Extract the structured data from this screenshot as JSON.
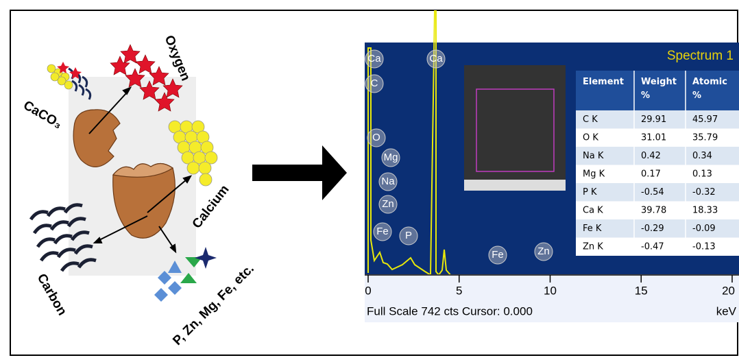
{
  "labels": {
    "oxygen": "Oxygen",
    "caco3": "CaCO₃",
    "calcium": "Calcium",
    "carbon": "Carbon",
    "others": "P, Zn, Mg, Fe, etc."
  },
  "spectrum": {
    "title": "Spectrum 1",
    "peak_labels": [
      "Ca",
      "C",
      "Ca",
      "O",
      "Mg",
      "Na",
      "Zn",
      "Fe",
      "P",
      "Fe",
      "Zn"
    ],
    "xlim": [
      0,
      20
    ],
    "xticks": [
      0,
      5,
      10,
      15,
      20
    ],
    "footer": "Full Scale 742 cts Cursor: 0.000",
    "unit": "keV"
  },
  "table": {
    "header": [
      "Element",
      "Weight %",
      "Atomic %"
    ],
    "rows": [
      [
        "C K",
        29.91,
        45.97
      ],
      [
        "O K",
        31.01,
        35.79
      ],
      [
        "Na K",
        0.42,
        0.34
      ],
      [
        "Mg K",
        0.17,
        0.13
      ],
      [
        "P K",
        -0.54,
        -0.32
      ],
      [
        "Ca K",
        39.78,
        18.33
      ],
      [
        "Fe K",
        -0.29,
        -0.09
      ],
      [
        "Zn K",
        -0.47,
        -0.13
      ]
    ]
  }
}
